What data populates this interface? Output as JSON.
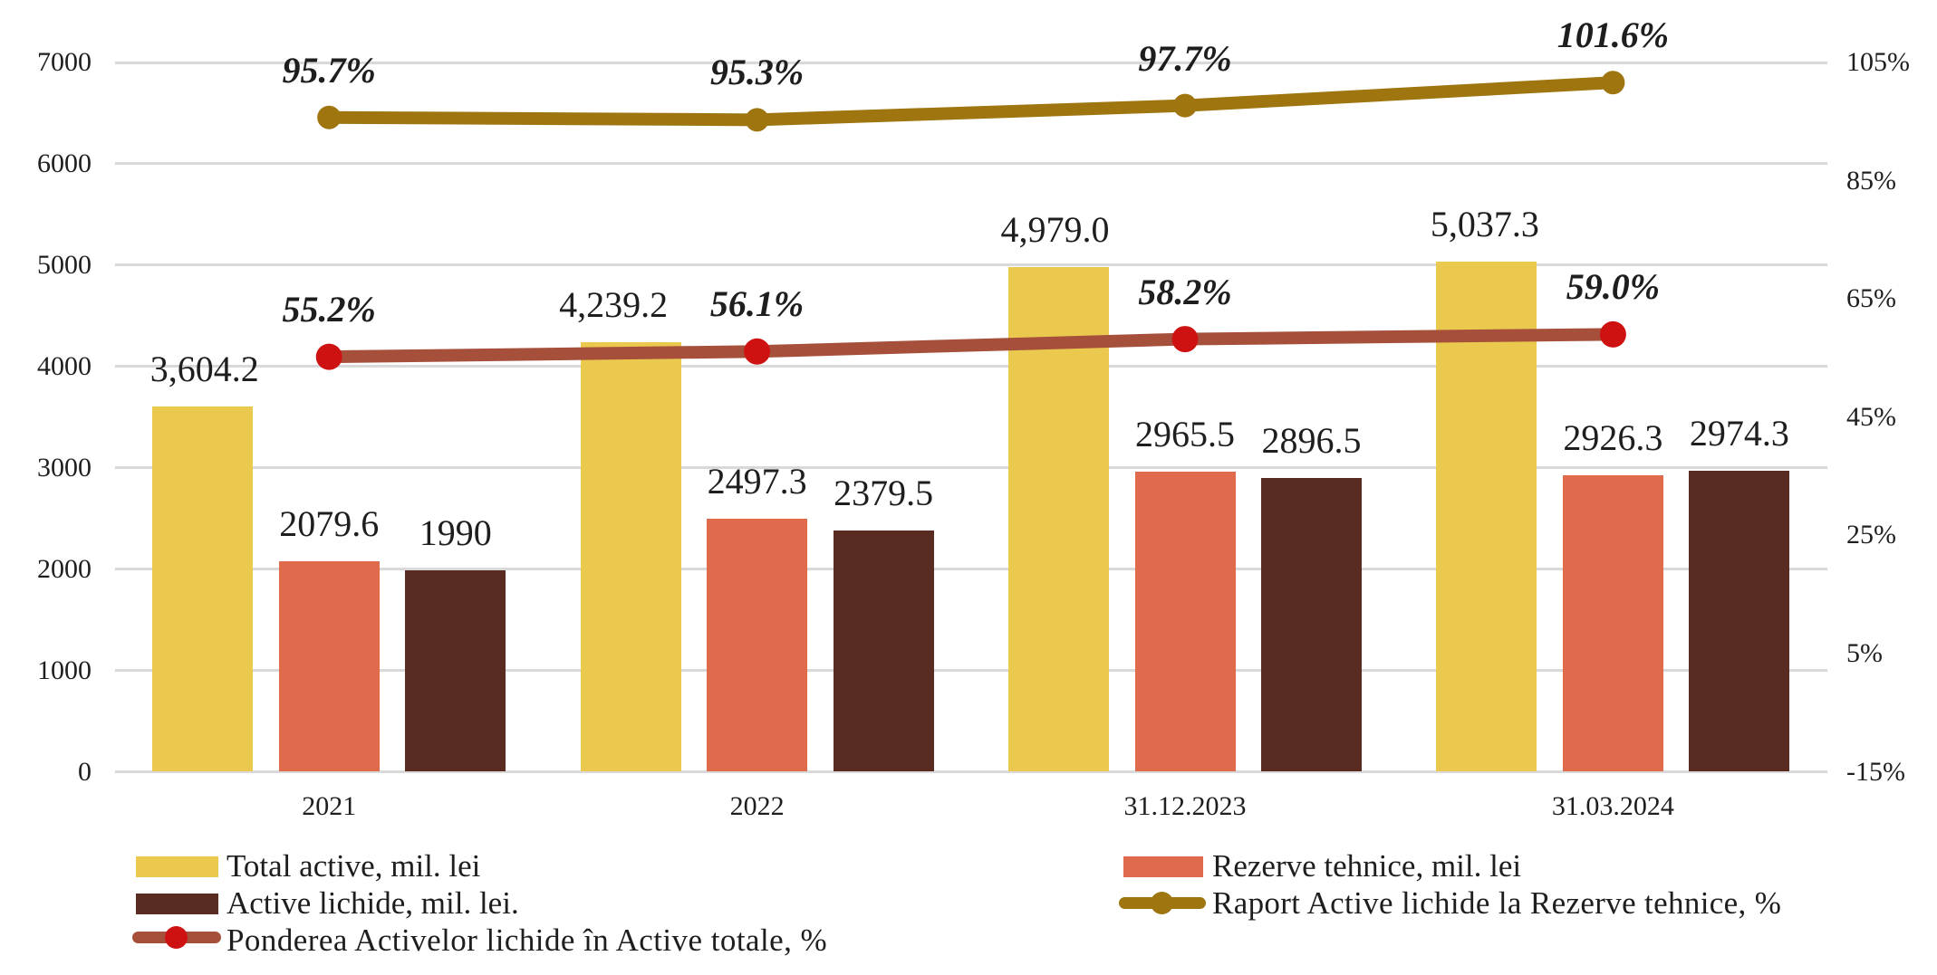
{
  "chart_data": {
    "type": "combo-bar-line",
    "categories": [
      "2021",
      "2022",
      "31.12.2023",
      "31.03.2024"
    ],
    "bar_series": [
      {
        "name": "Total active, mil. lei",
        "color": "#ebc94e",
        "values": [
          3604.2,
          4239.2,
          4979.0,
          5037.3
        ],
        "labels": [
          "3,604.2",
          "4,239.2",
          "4,979.0",
          "5,037.3"
        ]
      },
      {
        "name": "Rezerve tehnice, mil. lei",
        "color": "#e06a4c",
        "values": [
          2079.6,
          2497.3,
          2965.5,
          2926.3
        ],
        "labels": [
          "2079.6",
          "2497.3",
          "2965.5",
          "2926.3"
        ]
      },
      {
        "name": "Active lichide, mil. lei.",
        "color": "#5a2b21",
        "values": [
          1990,
          2379.5,
          2896.5,
          2974.3
        ],
        "labels": [
          "1990",
          "2379.5",
          "2896.5",
          "2974.3"
        ]
      }
    ],
    "line_series": [
      {
        "name": "Raport Active lichide la Rezerve tehnice, %",
        "color": "#9e750f",
        "marker_color": "#9e750f",
        "axis": "right",
        "values": [
          95.7,
          95.3,
          97.7,
          101.6
        ],
        "labels": [
          "95.7%",
          "95.3%",
          "97.7%",
          "101.6%"
        ]
      },
      {
        "name": "Ponderea Activelor lichide în Active totale, %",
        "color": "#a6503c",
        "marker_color": "#ce1212",
        "axis": "right",
        "values": [
          55.2,
          56.1,
          58.2,
          59.0
        ],
        "labels": [
          "55.2%",
          "56.1%",
          "58.2%",
          "59.0%"
        ]
      }
    ],
    "left_axis": {
      "min": 0,
      "max": 7000,
      "step": 1000,
      "tick_labels": [
        "0",
        "1000",
        "2000",
        "3000",
        "4000",
        "5000",
        "6000",
        "7000"
      ]
    },
    "right_axis": {
      "min": -15,
      "max": 105,
      "step": 20,
      "tick_labels": [
        "-15%",
        "5%",
        "25%",
        "45%",
        "65%",
        "85%",
        "105%"
      ]
    },
    "grid": true,
    "legend_position": "bottom",
    "background": "#ffffff",
    "gridline_color": "#d9d9d9",
    "text_color": "#1e1e1e"
  }
}
